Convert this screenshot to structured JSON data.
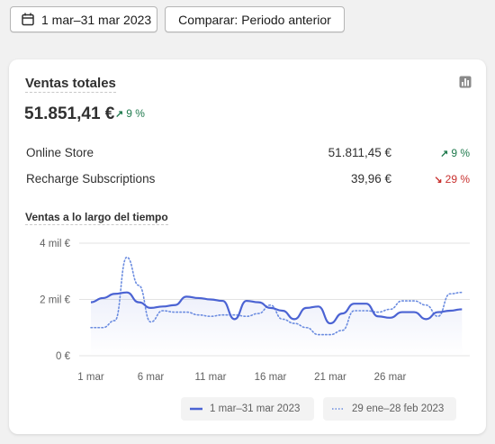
{
  "toolbar": {
    "date_range_label": "1 mar–31 mar 2023",
    "compare_label": "Comparar: Periodo anterior"
  },
  "card": {
    "title": "Ventas totales",
    "total": "51.851,41 €",
    "total_delta": "9 %",
    "total_delta_direction": "up",
    "rows": [
      {
        "name": "Online Store",
        "amount": "51.811,45 €",
        "delta": "9 %",
        "direction": "up"
      },
      {
        "name": "Recharge Subscriptions",
        "amount": "39,96 €",
        "delta": "29 %",
        "direction": "down"
      }
    ]
  },
  "colors": {
    "positive": "#1f7a4d",
    "negative": "#c8302e",
    "current_series": "#4b63d3",
    "previous_series": "#6b8ce0"
  },
  "chart_data": {
    "type": "line",
    "title": "Ventas a lo largo del tiempo",
    "x_tick_labels": [
      "1 mar",
      "6 mar",
      "11 mar",
      "16 mar",
      "21 mar",
      "26 mar"
    ],
    "y_tick_labels": [
      "4 mil €",
      "2 mil €",
      "0 €"
    ],
    "ylim": [
      0,
      4000
    ],
    "grid": true,
    "legend_position": "bottom-right",
    "series": [
      {
        "name": "1 mar–31 mar 2023",
        "style": "solid",
        "values": [
          1900,
          2050,
          2200,
          2250,
          1900,
          1700,
          1750,
          1800,
          2100,
          2050,
          2000,
          1950,
          1300,
          1950,
          1900,
          1700,
          1600,
          1300,
          1700,
          1750,
          1150,
          1500,
          1850,
          1850,
          1400,
          1350,
          1550,
          1550,
          1300,
          1550,
          1600,
          1650
        ]
      },
      {
        "name": "29 ene–28 feb 2023",
        "style": "dotted",
        "values": [
          1000,
          1000,
          1250,
          3500,
          2500,
          1200,
          1600,
          1550,
          1550,
          1450,
          1400,
          1450,
          1450,
          1400,
          1500,
          1800,
          1300,
          1150,
          1000,
          750,
          750,
          900,
          1600,
          1600,
          1550,
          1650,
          1950,
          1950,
          1800,
          1400,
          2200,
          2250
        ]
      }
    ]
  }
}
